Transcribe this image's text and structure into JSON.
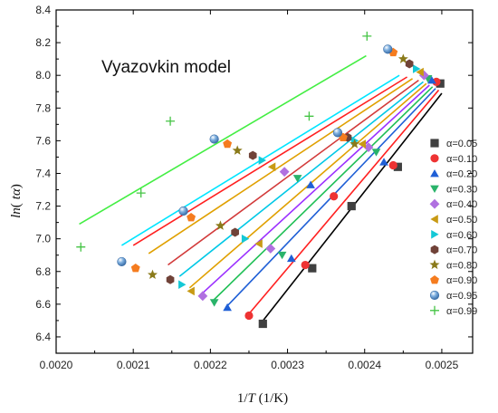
{
  "chart_data": {
    "type": "scatter",
    "annotation": "Vyazovkin model",
    "xlabel_prefix": "1/",
    "xlabel_var": "T",
    "xlabel_suffix": " (1/K)",
    "ylabel_var": "ln",
    "ylabel_paren_open": "(",
    "ylabel_inner": "tα",
    "ylabel_paren_close": ")",
    "xlim": [
      0.002,
      0.00254
    ],
    "ylim": [
      6.3,
      8.4
    ],
    "xticks": [
      0.002,
      0.0021,
      0.0022,
      0.0023,
      0.0024,
      0.0025
    ],
    "xtick_labels": [
      "0.0020",
      "0.0021",
      "0.0022",
      "0.0023",
      "0.0024",
      "0.0025"
    ],
    "yticks": [
      6.4,
      6.6,
      6.8,
      7.0,
      7.2,
      7.4,
      7.6,
      7.8,
      8.0,
      8.2,
      8.4
    ],
    "ytick_labels": [
      "6.4",
      "6.6",
      "6.8",
      "7.0",
      "7.2",
      "7.4",
      "7.6",
      "7.8",
      "8.0",
      "8.2",
      "8.4"
    ],
    "legend_position": "right",
    "series": [
      {
        "name": "α=0.05",
        "color": "#404040",
        "marker": "square",
        "points": [
          [
            0.002268,
            6.48
          ],
          [
            0.002332,
            6.82
          ],
          [
            0.002383,
            7.2
          ],
          [
            0.002443,
            7.44
          ],
          [
            0.002498,
            7.95
          ]
        ],
        "fit": [
          [
            0.002265,
            6.48
          ],
          [
            0.0025,
            7.89
          ]
        ]
      },
      {
        "name": "α=0.10",
        "color": "#ee3333",
        "marker": "circle",
        "points": [
          [
            0.00225,
            6.53
          ],
          [
            0.002323,
            6.84
          ],
          [
            0.00236,
            7.26
          ],
          [
            0.002437,
            7.45
          ],
          [
            0.002493,
            7.96
          ]
        ],
        "fit": [
          [
            0.002248,
            6.53
          ],
          [
            0.002496,
            7.91
          ]
        ]
      },
      {
        "name": "α=0.20",
        "color": "#1f5fd6",
        "marker": "triangle-up",
        "points": [
          [
            0.002222,
            6.58
          ],
          [
            0.002305,
            6.88
          ],
          [
            0.00233,
            7.33
          ],
          [
            0.002425,
            7.47
          ],
          [
            0.002487,
            7.97
          ]
        ],
        "fit": [
          [
            0.00222,
            6.58
          ],
          [
            0.002492,
            7.92
          ]
        ]
      },
      {
        "name": "α=0.30",
        "color": "#2ab36a",
        "marker": "triangle-down",
        "points": [
          [
            0.002205,
            6.61
          ],
          [
            0.002293,
            6.9
          ],
          [
            0.002313,
            7.37
          ],
          [
            0.002415,
            7.53
          ],
          [
            0.002482,
            7.98
          ]
        ],
        "fit": [
          [
            0.002203,
            6.62
          ],
          [
            0.002488,
            7.93
          ]
        ]
      },
      {
        "name": "α=0.40",
        "color": "#b070e0",
        "marker": "diamond",
        "points": [
          [
            0.00219,
            6.65
          ],
          [
            0.002278,
            6.94
          ],
          [
            0.002296,
            7.41
          ],
          [
            0.002405,
            7.56
          ],
          [
            0.002477,
            8.0
          ]
        ],
        "fit": [
          [
            0.002188,
            6.66
          ],
          [
            0.002484,
            7.94
          ]
        ]
      },
      {
        "name": "α=0.50",
        "color": "#c89a14",
        "marker": "triangle-left",
        "points": [
          [
            0.002175,
            6.68
          ],
          [
            0.002263,
            6.97
          ],
          [
            0.00228,
            7.44
          ],
          [
            0.002397,
            7.58
          ],
          [
            0.002472,
            8.02
          ]
        ],
        "fit": [
          [
            0.002173,
            6.7
          ],
          [
            0.00248,
            7.95
          ]
        ]
      },
      {
        "name": "α=0.60",
        "color": "#14c8d6",
        "marker": "triangle-right",
        "points": [
          [
            0.002163,
            6.72
          ],
          [
            0.002245,
            7.0
          ],
          [
            0.002267,
            7.48
          ],
          [
            0.002387,
            7.6
          ],
          [
            0.002467,
            8.04
          ]
        ],
        "fit": [
          [
            0.00216,
            6.77
          ],
          [
            0.002476,
            7.96
          ]
        ]
      },
      {
        "name": "α=0.70",
        "color": "#704238",
        "marker": "hexagon",
        "points": [
          [
            0.002148,
            6.75
          ],
          [
            0.002232,
            7.04
          ],
          [
            0.002255,
            7.51
          ],
          [
            0.002378,
            7.62
          ],
          [
            0.002458,
            8.07
          ]
        ],
        "fit": [
          [
            0.002145,
            6.84
          ],
          [
            0.00247,
            7.97
          ]
        ]
      },
      {
        "name": "α=0.80",
        "color": "#8a7a1a",
        "marker": "star",
        "points": [
          [
            0.002125,
            6.78
          ],
          [
            0.002213,
            7.08
          ],
          [
            0.002235,
            7.54
          ],
          [
            0.002387,
            7.58
          ],
          [
            0.00245,
            8.1
          ]
        ],
        "fit": [
          [
            0.00212,
            6.91
          ],
          [
            0.002462,
            7.98
          ]
        ]
      },
      {
        "name": "α=0.90",
        "color": "#f57c1f",
        "marker": "pentagon",
        "points": [
          [
            0.002103,
            6.82
          ],
          [
            0.002175,
            7.13
          ],
          [
            0.002222,
            7.58
          ],
          [
            0.002372,
            7.62
          ],
          [
            0.002437,
            8.14
          ]
        ],
        "fit": [
          [
            0.0021,
            6.96
          ],
          [
            0.002455,
            7.99
          ]
        ]
      },
      {
        "name": "α=0.95",
        "color": "#4a88cc",
        "marker": "sphere",
        "points": [
          [
            0.002085,
            6.86
          ],
          [
            0.002165,
            7.17
          ],
          [
            0.002205,
            7.61
          ],
          [
            0.002365,
            7.65
          ],
          [
            0.00243,
            8.16
          ]
        ],
        "fit": [
          [
            0.002085,
            6.96
          ],
          [
            0.002445,
            8.0
          ]
        ]
      },
      {
        "name": "α=0.99",
        "color": "#44c444",
        "marker": "plus",
        "points": [
          [
            0.002032,
            6.95
          ],
          [
            0.00211,
            7.28
          ],
          [
            0.002148,
            7.72
          ],
          [
            0.002328,
            7.75
          ],
          [
            0.002403,
            8.24
          ]
        ],
        "fit": [
          [
            0.00203,
            7.09
          ],
          [
            0.002402,
            8.12
          ]
        ]
      }
    ]
  }
}
